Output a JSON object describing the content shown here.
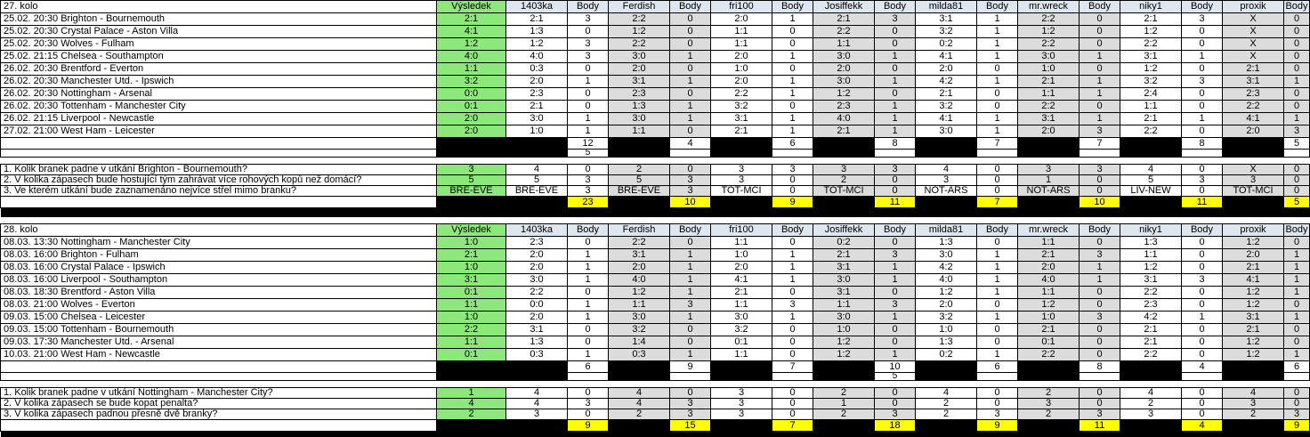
{
  "columns": {
    "result_header": "Výsledek",
    "body_header": "Body",
    "players": [
      "1403ka",
      "Ferdish",
      "fri100",
      "Josiffekk",
      "milda81",
      "mr.wreck",
      "niky1",
      "proxik"
    ]
  },
  "colors": {
    "result_green": "#8DE87B",
    "header_blue": "#DEE6EF",
    "alt_column_gray": "#DCDCDC",
    "total_yellow": "#FFFF00",
    "separator_black": "#000000"
  },
  "rounds": [
    {
      "title": "27. kolo",
      "matches": [
        {
          "label": "25.02. 20:30 Brighton - Bournemouth",
          "result": "2:1",
          "tips": [
            "2:1",
            "2:2",
            "2:0",
            "2:1",
            "3:1",
            "2:2",
            "2:1",
            "X"
          ],
          "points": [
            "3",
            "0",
            "1",
            "3",
            "1",
            "0",
            "3",
            "0"
          ]
        },
        {
          "label": "25.02. 20:30 Crystal Palace - Aston Villa",
          "result": "4:1",
          "tips": [
            "1:3",
            "1:2",
            "1:1",
            "2:2",
            "3:2",
            "1:2",
            "1:2",
            "X"
          ],
          "points": [
            "0",
            "0",
            "0",
            "0",
            "1",
            "0",
            "0",
            "0"
          ]
        },
        {
          "label": "25.02. 20:30 Wolves - Fulham",
          "result": "1:2",
          "tips": [
            "1:2",
            "2:2",
            "1:1",
            "1:1",
            "0:2",
            "2:2",
            "2:2",
            "X"
          ],
          "points": [
            "3",
            "0",
            "0",
            "0",
            "1",
            "0",
            "0",
            "0"
          ]
        },
        {
          "label": "25.02. 21:15 Chelsea - Southampton",
          "result": "4:0",
          "tips": [
            "4:0",
            "3:0",
            "2:0",
            "3:0",
            "4:1",
            "3:0",
            "3:1",
            "X"
          ],
          "points": [
            "3",
            "1",
            "1",
            "1",
            "1",
            "1",
            "1",
            "0"
          ]
        },
        {
          "label": "26.02. 20:30 Brentford - Everton",
          "result": "1:1",
          "tips": [
            "0:3",
            "2:0",
            "1:0",
            "2:0",
            "2:0",
            "1:0",
            "1:2",
            "2:1"
          ],
          "points": [
            "0",
            "0",
            "0",
            "0",
            "0",
            "0",
            "0",
            "0"
          ]
        },
        {
          "label": "26.02. 20:30 Manchester Utd. - Ipswich",
          "result": "3:2",
          "tips": [
            "2:0",
            "3:1",
            "2:0",
            "3:0",
            "4:2",
            "2:1",
            "3:2",
            "3:1"
          ],
          "points": [
            "1",
            "1",
            "1",
            "1",
            "1",
            "1",
            "3",
            "1"
          ]
        },
        {
          "label": "26.02. 20:30 Nottingham - Arsenal",
          "result": "0:0",
          "tips": [
            "2:3",
            "2:3",
            "2:2",
            "1:2",
            "2:1",
            "1:1",
            "2:4",
            "2:3"
          ],
          "points": [
            "0",
            "0",
            "1",
            "0",
            "0",
            "1",
            "0",
            "0"
          ]
        },
        {
          "label": "26.02. 20:30 Tottenham - Manchester City",
          "result": "0:1",
          "tips": [
            "2:1",
            "1:3",
            "3:2",
            "2:3",
            "3:2",
            "2:2",
            "1:1",
            "2:2"
          ],
          "points": [
            "0",
            "1",
            "0",
            "1",
            "0",
            "0",
            "0",
            "0"
          ]
        },
        {
          "label": "26.02. 21:15 Liverpool - Newcastle",
          "result": "2:0",
          "tips": [
            "3:0",
            "3:0",
            "3:1",
            "4:0",
            "4:1",
            "3:1",
            "2:1",
            "4:1"
          ],
          "points": [
            "1",
            "1",
            "1",
            "1",
            "1",
            "1",
            "1",
            "1"
          ]
        },
        {
          "label": "27.02. 21:00 West Ham - Leicester",
          "result": "2:0",
          "tips": [
            "1:0",
            "1:1",
            "2:1",
            "2:1",
            "3:0",
            "2:0",
            "2:2",
            "2:0"
          ],
          "points": [
            "1",
            "0",
            "1",
            "1",
            "1",
            "3",
            "0",
            "3"
          ]
        }
      ],
      "totals": [
        "12",
        "4",
        "6",
        "8",
        "7",
        "7",
        "8",
        "5"
      ],
      "bonus": [
        "5",
        "",
        "",
        "",
        "",
        "",
        "",
        ""
      ],
      "questions": [
        {
          "label": "1. Kolik branek padne v utkání Brighton - Bournemouth?",
          "answer": "3",
          "tips": [
            "4",
            "2",
            "3",
            "3",
            "4",
            "3",
            "4",
            "X"
          ],
          "points": [
            "0",
            "0",
            "3",
            "3",
            "0",
            "3",
            "0",
            "0"
          ]
        },
        {
          "label": "2. V kolika zápasech bude hostující tým zahrávat více rohových kopů než domácí?",
          "answer": "5",
          "tips": [
            "5",
            "5",
            "3",
            "2",
            "3",
            "1",
            "5",
            "3"
          ],
          "points": [
            "3",
            "3",
            "0",
            "0",
            "0",
            "0",
            "3",
            "0"
          ]
        },
        {
          "label": "3. Ve kterém utkání bude zaznamenáno nejvíce střel mimo branku?",
          "answer": "BRE-EVE",
          "tips": [
            "BRE-EVE",
            "BRE-EVE",
            "TOT-MCI",
            "TOT-MCI",
            "NOT-ARS",
            "NOT-ARS",
            "LIV-NEW",
            "TOT-MCI"
          ],
          "points": [
            "3",
            "3",
            "0",
            "0",
            "0",
            "0",
            "0",
            "0"
          ]
        }
      ],
      "grand_totals": [
        "23",
        "10",
        "9",
        "11",
        "7",
        "10",
        "11",
        "5"
      ]
    },
    {
      "title": "28. kolo",
      "matches": [
        {
          "label": "08.03. 13:30 Nottingham - Manchester City",
          "result": "1:0",
          "tips": [
            "2:3",
            "2:2",
            "1:1",
            "0:2",
            "1:3",
            "1:1",
            "1:3",
            "1:2"
          ],
          "points": [
            "0",
            "0",
            "0",
            "0",
            "0",
            "0",
            "0",
            "0"
          ]
        },
        {
          "label": "08.03. 16:00 Brighton - Fulham",
          "result": "2:1",
          "tips": [
            "2:0",
            "3:1",
            "1:0",
            "2:1",
            "3:0",
            "2:1",
            "1:1",
            "2:0"
          ],
          "points": [
            "1",
            "1",
            "1",
            "3",
            "1",
            "3",
            "0",
            "1"
          ]
        },
        {
          "label": "08.03. 16:00 Crystal Palace - Ipswich",
          "result": "1:0",
          "tips": [
            "2:0",
            "2:0",
            "2:0",
            "3:1",
            "4:2",
            "2:0",
            "1:2",
            "2:1"
          ],
          "points": [
            "1",
            "1",
            "1",
            "1",
            "1",
            "1",
            "0",
            "1"
          ]
        },
        {
          "label": "08.03. 16:00 Liverpool - Southampton",
          "result": "3:1",
          "tips": [
            "3:0",
            "4:0",
            "4:1",
            "3:0",
            "4:0",
            "4:0",
            "3:1",
            "4:1"
          ],
          "points": [
            "1",
            "1",
            "1",
            "1",
            "1",
            "1",
            "3",
            "1"
          ]
        },
        {
          "label": "08.03. 18:30 Brentford - Aston Villa",
          "result": "0:1",
          "tips": [
            "2:2",
            "1:2",
            "2:1",
            "3:1",
            "1:2",
            "1:1",
            "2:2",
            "1:2"
          ],
          "points": [
            "0",
            "1",
            "0",
            "0",
            "1",
            "0",
            "0",
            "1"
          ]
        },
        {
          "label": "08.03. 21:00 Wolves - Everton",
          "result": "1:1",
          "tips": [
            "0:0",
            "1:1",
            "1:1",
            "1:1",
            "2:0",
            "1:2",
            "2:3",
            "1:2"
          ],
          "points": [
            "1",
            "3",
            "3",
            "3",
            "0",
            "0",
            "0",
            "0"
          ]
        },
        {
          "label": "09.03. 15:00 Chelsea - Leicester",
          "result": "1:0",
          "tips": [
            "2:0",
            "3:0",
            "3:0",
            "3:0",
            "3:2",
            "1:0",
            "4:2",
            "3:1"
          ],
          "points": [
            "1",
            "1",
            "1",
            "1",
            "1",
            "3",
            "1",
            "1"
          ]
        },
        {
          "label": "09.03. 15:00 Tottenham - Bournemouth",
          "result": "2:2",
          "tips": [
            "3:1",
            "3:2",
            "3:2",
            "1:0",
            "1:0",
            "2:1",
            "2:1",
            "2:1"
          ],
          "points": [
            "0",
            "0",
            "0",
            "0",
            "0",
            "0",
            "0",
            "0"
          ]
        },
        {
          "label": "09.03. 17:30 Manchester Utd. - Arsenal",
          "result": "1:1",
          "tips": [
            "1:3",
            "1:4",
            "0:1",
            "1:2",
            "1:3",
            "0:1",
            "2:1",
            "1:2"
          ],
          "points": [
            "0",
            "0",
            "0",
            "0",
            "0",
            "0",
            "0",
            "0"
          ]
        },
        {
          "label": "10.03. 21:00 West Ham - Newcastle",
          "result": "0:1",
          "tips": [
            "0:3",
            "0:3",
            "1:1",
            "1:2",
            "0:2",
            "2:2",
            "2:2",
            "1:2"
          ],
          "points": [
            "1",
            "1",
            "0",
            "1",
            "1",
            "0",
            "0",
            "1"
          ]
        }
      ],
      "totals": [
        "6",
        "9",
        "7",
        "10",
        "6",
        "8",
        "4",
        "6"
      ],
      "bonus": [
        "",
        "",
        "",
        "5",
        "",
        "",
        "",
        ""
      ],
      "questions": [
        {
          "label": "1. Kolik branek padne v utkání Nottingham - Manchester City?",
          "answer": "1",
          "tips": [
            "4",
            "4",
            "3",
            "2",
            "4",
            "2",
            "4",
            "4"
          ],
          "points": [
            "0",
            "0",
            "0",
            "0",
            "0",
            "0",
            "0",
            "0"
          ]
        },
        {
          "label": "2. V kolika zápasech se bude kopat penalta?",
          "answer": "4",
          "tips": [
            "4",
            "4",
            "3",
            "1",
            "2",
            "3",
            "2",
            "3"
          ],
          "points": [
            "3",
            "3",
            "0",
            "0",
            "0",
            "0",
            "0",
            "0"
          ]
        },
        {
          "label": "3. V kolika zápasech padnou přesně dvě branky?",
          "answer": "2",
          "tips": [
            "3",
            "2",
            "3",
            "2",
            "2",
            "2",
            "3",
            "2"
          ],
          "points": [
            "0",
            "3",
            "0",
            "3",
            "3",
            "3",
            "0",
            "3"
          ]
        }
      ],
      "grand_totals": [
        "9",
        "15",
        "7",
        "18",
        "9",
        "11",
        "4",
        "9"
      ]
    }
  ]
}
